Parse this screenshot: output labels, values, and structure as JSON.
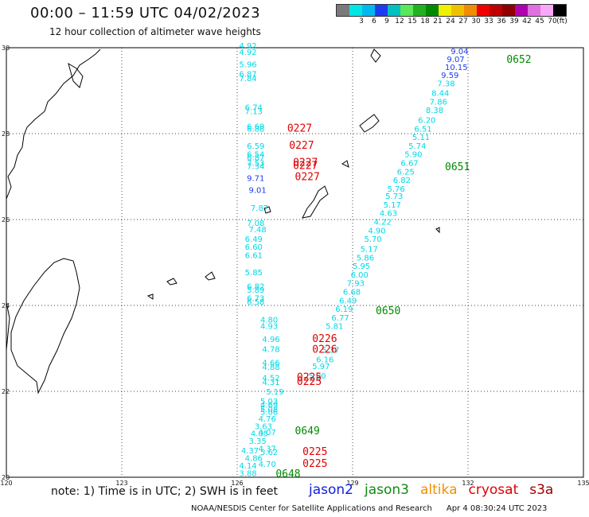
{
  "header": {
    "title": "00:00 – 11:59 UTC 04/02/2023",
    "subtitle": "12 hour collection of altimeter wave heights"
  },
  "legend": {
    "unit_label": "(ft)",
    "bins": [
      {
        "label": "",
        "color": "#7a7a7a"
      },
      {
        "label": "3",
        "color": "#00e5e5"
      },
      {
        "label": "6",
        "color": "#00b8f0"
      },
      {
        "label": "9",
        "color": "#1c3cf0"
      },
      {
        "label": "12",
        "color": "#00c0c0"
      },
      {
        "label": "15",
        "color": "#58e858"
      },
      {
        "label": "18",
        "color": "#20b020"
      },
      {
        "label": "21",
        "color": "#008a00"
      },
      {
        "label": "24",
        "color": "#f0f000"
      },
      {
        "label": "27",
        "color": "#f0c000"
      },
      {
        "label": "30",
        "color": "#f08c00"
      },
      {
        "label": "33",
        "color": "#f00000"
      },
      {
        "label": "36",
        "color": "#c00000"
      },
      {
        "label": "39",
        "color": "#900000"
      },
      {
        "label": "42",
        "color": "#b000b0"
      },
      {
        "label": "45",
        "color": "#e070e0"
      },
      {
        "label": "70",
        "color": "#f8a8f8"
      },
      {
        "label": "",
        "color": "#000000"
      }
    ]
  },
  "map": {
    "lon_labels": [
      "120",
      "123",
      "126",
      "129",
      "132",
      "135"
    ],
    "lat_labels": [
      "30",
      "28",
      "26",
      "24",
      "22",
      "20"
    ],
    "bounds": {
      "lon_min": 120,
      "lon_max": 135,
      "lat_min": 20,
      "lat_max": 30
    }
  },
  "observations": [
    {
      "lon": 126.05,
      "lat": 29.98,
      "v": "4.92",
      "c": "#00d8e8"
    },
    {
      "lon": 126.05,
      "lat": 29.83,
      "v": "4.92",
      "c": "#00d8e8"
    },
    {
      "lon": 126.05,
      "lat": 29.55,
      "v": "5.96",
      "c": "#00d8e8"
    },
    {
      "lon": 126.05,
      "lat": 29.32,
      "v": "6.87",
      "c": "#00d8e8"
    },
    {
      "lon": 126.05,
      "lat": 29.22,
      "v": "7.84",
      "c": "#00d8e8"
    },
    {
      "lon": 126.2,
      "lat": 28.55,
      "v": "6.74",
      "c": "#00d8e8"
    },
    {
      "lon": 126.2,
      "lat": 28.45,
      "v": "7.13",
      "c": "#00d8e8"
    },
    {
      "lon": 126.25,
      "lat": 28.1,
      "v": "6.69",
      "c": "#00d8e8"
    },
    {
      "lon": 126.25,
      "lat": 28.05,
      "v": "6.88",
      "c": "#00d8e8"
    },
    {
      "lon": 126.25,
      "lat": 27.65,
      "v": "6.59",
      "c": "#00d8e8"
    },
    {
      "lon": 126.25,
      "lat": 27.45,
      "v": "6.54",
      "c": "#00d8e8"
    },
    {
      "lon": 126.25,
      "lat": 27.38,
      "v": "6.87",
      "c": "#00d8e8"
    },
    {
      "lon": 126.25,
      "lat": 27.25,
      "v": "7.53",
      "c": "#00d8e8"
    },
    {
      "lon": 126.25,
      "lat": 27.18,
      "v": "7.34",
      "c": "#00d8e8"
    },
    {
      "lon": 126.25,
      "lat": 26.9,
      "v": "9.71",
      "c": "#1c3cf0"
    },
    {
      "lon": 126.3,
      "lat": 26.62,
      "v": "9.01",
      "c": "#1c3cf0"
    },
    {
      "lon": 126.35,
      "lat": 26.2,
      "v": "7.87",
      "c": "#00d8e8"
    },
    {
      "lon": 126.25,
      "lat": 25.85,
      "v": "7.08",
      "c": "#00d8e8"
    },
    {
      "lon": 126.3,
      "lat": 25.7,
      "v": "7.48",
      "c": "#00d8e8"
    },
    {
      "lon": 126.2,
      "lat": 25.48,
      "v": "6.49",
      "c": "#00d8e8"
    },
    {
      "lon": 126.2,
      "lat": 25.3,
      "v": "6.60",
      "c": "#00d8e8"
    },
    {
      "lon": 126.2,
      "lat": 25.1,
      "v": "6.61",
      "c": "#00d8e8"
    },
    {
      "lon": 126.2,
      "lat": 24.7,
      "v": "5.85",
      "c": "#00d8e8"
    },
    {
      "lon": 126.25,
      "lat": 24.38,
      "v": "6.82",
      "c": "#00d8e8"
    },
    {
      "lon": 126.25,
      "lat": 24.3,
      "v": "5.89",
      "c": "#00d8e8"
    },
    {
      "lon": 126.25,
      "lat": 24.1,
      "v": "6.73",
      "c": "#00d8e8"
    },
    {
      "lon": 126.25,
      "lat": 24.02,
      "v": "6.58",
      "c": "#00d8e8"
    },
    {
      "lon": 126.6,
      "lat": 23.6,
      "v": "4.80",
      "c": "#00d8e8"
    },
    {
      "lon": 126.6,
      "lat": 23.45,
      "v": "4.93",
      "c": "#00d8e8"
    },
    {
      "lon": 126.65,
      "lat": 23.15,
      "v": "4.96",
      "c": "#00d8e8"
    },
    {
      "lon": 126.65,
      "lat": 22.92,
      "v": "4.78",
      "c": "#00d8e8"
    },
    {
      "lon": 126.65,
      "lat": 22.6,
      "v": "4.66",
      "c": "#00d8e8"
    },
    {
      "lon": 126.65,
      "lat": 22.5,
      "v": "4.88",
      "c": "#00d8e8"
    },
    {
      "lon": 126.65,
      "lat": 22.25,
      "v": "4.52",
      "c": "#00d8e8"
    },
    {
      "lon": 126.65,
      "lat": 22.15,
      "v": "4.31",
      "c": "#00d8e8"
    },
    {
      "lon": 126.75,
      "lat": 21.93,
      "v": "5.19",
      "c": "#00d8e8"
    },
    {
      "lon": 126.6,
      "lat": 21.7,
      "v": "5.03",
      "c": "#00d8e8"
    },
    {
      "lon": 126.6,
      "lat": 21.62,
      "v": "4.69",
      "c": "#00d8e8"
    },
    {
      "lon": 126.6,
      "lat": 21.52,
      "v": "5.08",
      "c": "#00d8e8"
    },
    {
      "lon": 126.6,
      "lat": 21.45,
      "v": "5.06",
      "c": "#00d8e8"
    },
    {
      "lon": 126.55,
      "lat": 21.3,
      "v": "4.76",
      "c": "#00d8e8"
    },
    {
      "lon": 126.45,
      "lat": 21.12,
      "v": "3.63",
      "c": "#00d8e8"
    },
    {
      "lon": 126.35,
      "lat": 20.95,
      "v": "4.05",
      "c": "#00d8e8"
    },
    {
      "lon": 126.55,
      "lat": 20.98,
      "v": "4.07",
      "c": "#00d8e8"
    },
    {
      "lon": 126.3,
      "lat": 20.78,
      "v": "3.35",
      "c": "#00d8e8"
    },
    {
      "lon": 126.1,
      "lat": 20.56,
      "v": "4.37",
      "c": "#00d8e8"
    },
    {
      "lon": 126.55,
      "lat": 20.6,
      "v": "4.37",
      "c": "#00d8e8"
    },
    {
      "lon": 126.6,
      "lat": 20.52,
      "v": "5.62",
      "c": "#00d8e8"
    },
    {
      "lon": 126.2,
      "lat": 20.38,
      "v": "4.86",
      "c": "#00d8e8"
    },
    {
      "lon": 126.05,
      "lat": 20.2,
      "v": "4.14",
      "c": "#00d8e8"
    },
    {
      "lon": 126.55,
      "lat": 20.24,
      "v": "4.70",
      "c": "#00d8e8"
    },
    {
      "lon": 126.05,
      "lat": 20.03,
      "v": "3.88",
      "c": "#00d8e8"
    },
    {
      "lon": 131.55,
      "lat": 29.85,
      "v": "9.04",
      "c": "#1c3cf0"
    },
    {
      "lon": 131.45,
      "lat": 29.67,
      "v": "9.07",
      "c": "#1c3cf0"
    },
    {
      "lon": 131.4,
      "lat": 29.48,
      "v": "10.15",
      "c": "#1c3cf0"
    },
    {
      "lon": 131.3,
      "lat": 29.3,
      "v": "9.59",
      "c": "#1c3cf0"
    },
    {
      "lon": 131.2,
      "lat": 29.1,
      "v": "7.38",
      "c": "#00d8e8"
    },
    {
      "lon": 131.05,
      "lat": 28.88,
      "v": "8.44",
      "c": "#00d8e8"
    },
    {
      "lon": 131.0,
      "lat": 28.68,
      "v": "7.86",
      "c": "#00d8e8"
    },
    {
      "lon": 130.9,
      "lat": 28.48,
      "v": "8.38",
      "c": "#00d8e8"
    },
    {
      "lon": 130.7,
      "lat": 28.25,
      "v": "6.20",
      "c": "#00d8e8"
    },
    {
      "lon": 130.6,
      "lat": 28.05,
      "v": "6.51",
      "c": "#00d8e8"
    },
    {
      "lon": 130.55,
      "lat": 27.85,
      "v": "5.11",
      "c": "#00d8e8"
    },
    {
      "lon": 130.45,
      "lat": 27.65,
      "v": "5.74",
      "c": "#00d8e8"
    },
    {
      "lon": 130.35,
      "lat": 27.45,
      "v": "5.90",
      "c": "#00d8e8"
    },
    {
      "lon": 130.25,
      "lat": 27.25,
      "v": "6.67",
      "c": "#00d8e8"
    },
    {
      "lon": 130.15,
      "lat": 27.05,
      "v": "6.25",
      "c": "#00d8e8"
    },
    {
      "lon": 130.05,
      "lat": 26.85,
      "v": "6.82",
      "c": "#00d8e8"
    },
    {
      "lon": 129.9,
      "lat": 26.65,
      "v": "5.76",
      "c": "#00d8e8"
    },
    {
      "lon": 129.85,
      "lat": 26.48,
      "v": "5.73",
      "c": "#00d8e8"
    },
    {
      "lon": 129.8,
      "lat": 26.28,
      "v": "5.17",
      "c": "#00d8e8"
    },
    {
      "lon": 129.7,
      "lat": 26.08,
      "v": "4.63",
      "c": "#00d8e8"
    },
    {
      "lon": 129.55,
      "lat": 25.88,
      "v": "4.22",
      "c": "#00d8e8"
    },
    {
      "lon": 129.4,
      "lat": 25.68,
      "v": "4.90",
      "c": "#00d8e8"
    },
    {
      "lon": 129.3,
      "lat": 25.48,
      "v": "5.70",
      "c": "#00d8e8"
    },
    {
      "lon": 129.2,
      "lat": 25.25,
      "v": "5.17",
      "c": "#00d8e8"
    },
    {
      "lon": 129.1,
      "lat": 25.05,
      "v": "5.86",
      "c": "#00d8e8"
    },
    {
      "lon": 129.0,
      "lat": 24.85,
      "v": "5.95",
      "c": "#00d8e8"
    },
    {
      "lon": 128.95,
      "lat": 24.65,
      "v": "6.00",
      "c": "#00d8e8"
    },
    {
      "lon": 128.85,
      "lat": 24.45,
      "v": "7.93",
      "c": "#00d8e8"
    },
    {
      "lon": 128.75,
      "lat": 24.25,
      "v": "6.68",
      "c": "#00d8e8"
    },
    {
      "lon": 128.65,
      "lat": 24.05,
      "v": "6.49",
      "c": "#00d8e8"
    },
    {
      "lon": 128.55,
      "lat": 23.85,
      "v": "6.19",
      "c": "#00d8e8"
    },
    {
      "lon": 128.45,
      "lat": 23.65,
      "v": "6.77",
      "c": "#00d8e8"
    },
    {
      "lon": 128.3,
      "lat": 23.45,
      "v": "5.81",
      "c": "#00d8e8"
    },
    {
      "lon": 128.2,
      "lat": 22.9,
      "v": "5.37",
      "c": "#00d8e8"
    },
    {
      "lon": 128.05,
      "lat": 22.68,
      "v": "6.16",
      "c": "#00d8e8"
    },
    {
      "lon": 127.95,
      "lat": 22.52,
      "v": "5.97",
      "c": "#00d8e8"
    },
    {
      "lon": 127.85,
      "lat": 22.3,
      "v": "5.00",
      "c": "#00d8e8"
    }
  ],
  "passes": [
    {
      "lon": 133.0,
      "lat": 29.65,
      "id": "0652",
      "c": "#008a00"
    },
    {
      "lon": 131.4,
      "lat": 27.15,
      "id": "0651",
      "c": "#008a00"
    },
    {
      "lon": 129.6,
      "lat": 23.8,
      "id": "0650",
      "c": "#008a00"
    },
    {
      "lon": 127.5,
      "lat": 21.0,
      "id": "0649",
      "c": "#008a00"
    },
    {
      "lon": 127.0,
      "lat": 20.0,
      "id": "0648",
      "c": "#008a00"
    },
    {
      "lon": 127.3,
      "lat": 28.05,
      "id": "0227",
      "c": "#e00000"
    },
    {
      "lon": 127.35,
      "lat": 27.65,
      "id": "0227",
      "c": "#e00000"
    },
    {
      "lon": 127.45,
      "lat": 27.25,
      "id": "0227",
      "c": "#e00000"
    },
    {
      "lon": 127.45,
      "lat": 27.18,
      "id": "0227",
      "c": "#e00000"
    },
    {
      "lon": 127.5,
      "lat": 26.92,
      "id": "0227",
      "c": "#e00000"
    },
    {
      "lon": 127.95,
      "lat": 23.15,
      "id": "0226",
      "c": "#e00000"
    },
    {
      "lon": 127.95,
      "lat": 22.9,
      "id": "0226",
      "c": "#e00000"
    },
    {
      "lon": 127.55,
      "lat": 22.25,
      "id": "0225",
      "c": "#e00000"
    },
    {
      "lon": 127.55,
      "lat": 22.15,
      "id": "0225",
      "c": "#e00000"
    },
    {
      "lon": 127.7,
      "lat": 20.52,
      "id": "0225",
      "c": "#e00000"
    },
    {
      "lon": 127.7,
      "lat": 20.24,
      "id": "0225",
      "c": "#e00000"
    }
  ],
  "footer": {
    "note": "note: 1) Time is in UTC; 2) SWH is in feet",
    "satellites": [
      {
        "name": "jason2",
        "color": "#1020e0"
      },
      {
        "name": "jason3",
        "color": "#108a10"
      },
      {
        "name": "altika",
        "color": "#f09000"
      },
      {
        "name": "cryosat",
        "color": "#e00000"
      },
      {
        "name": "s3a",
        "color": "#a00000"
      }
    ],
    "credit": "NOAA/NESDIS Center for Satellite Applications and Research",
    "timestamp": "Apr  4 08:30:24 UTC 2023"
  }
}
